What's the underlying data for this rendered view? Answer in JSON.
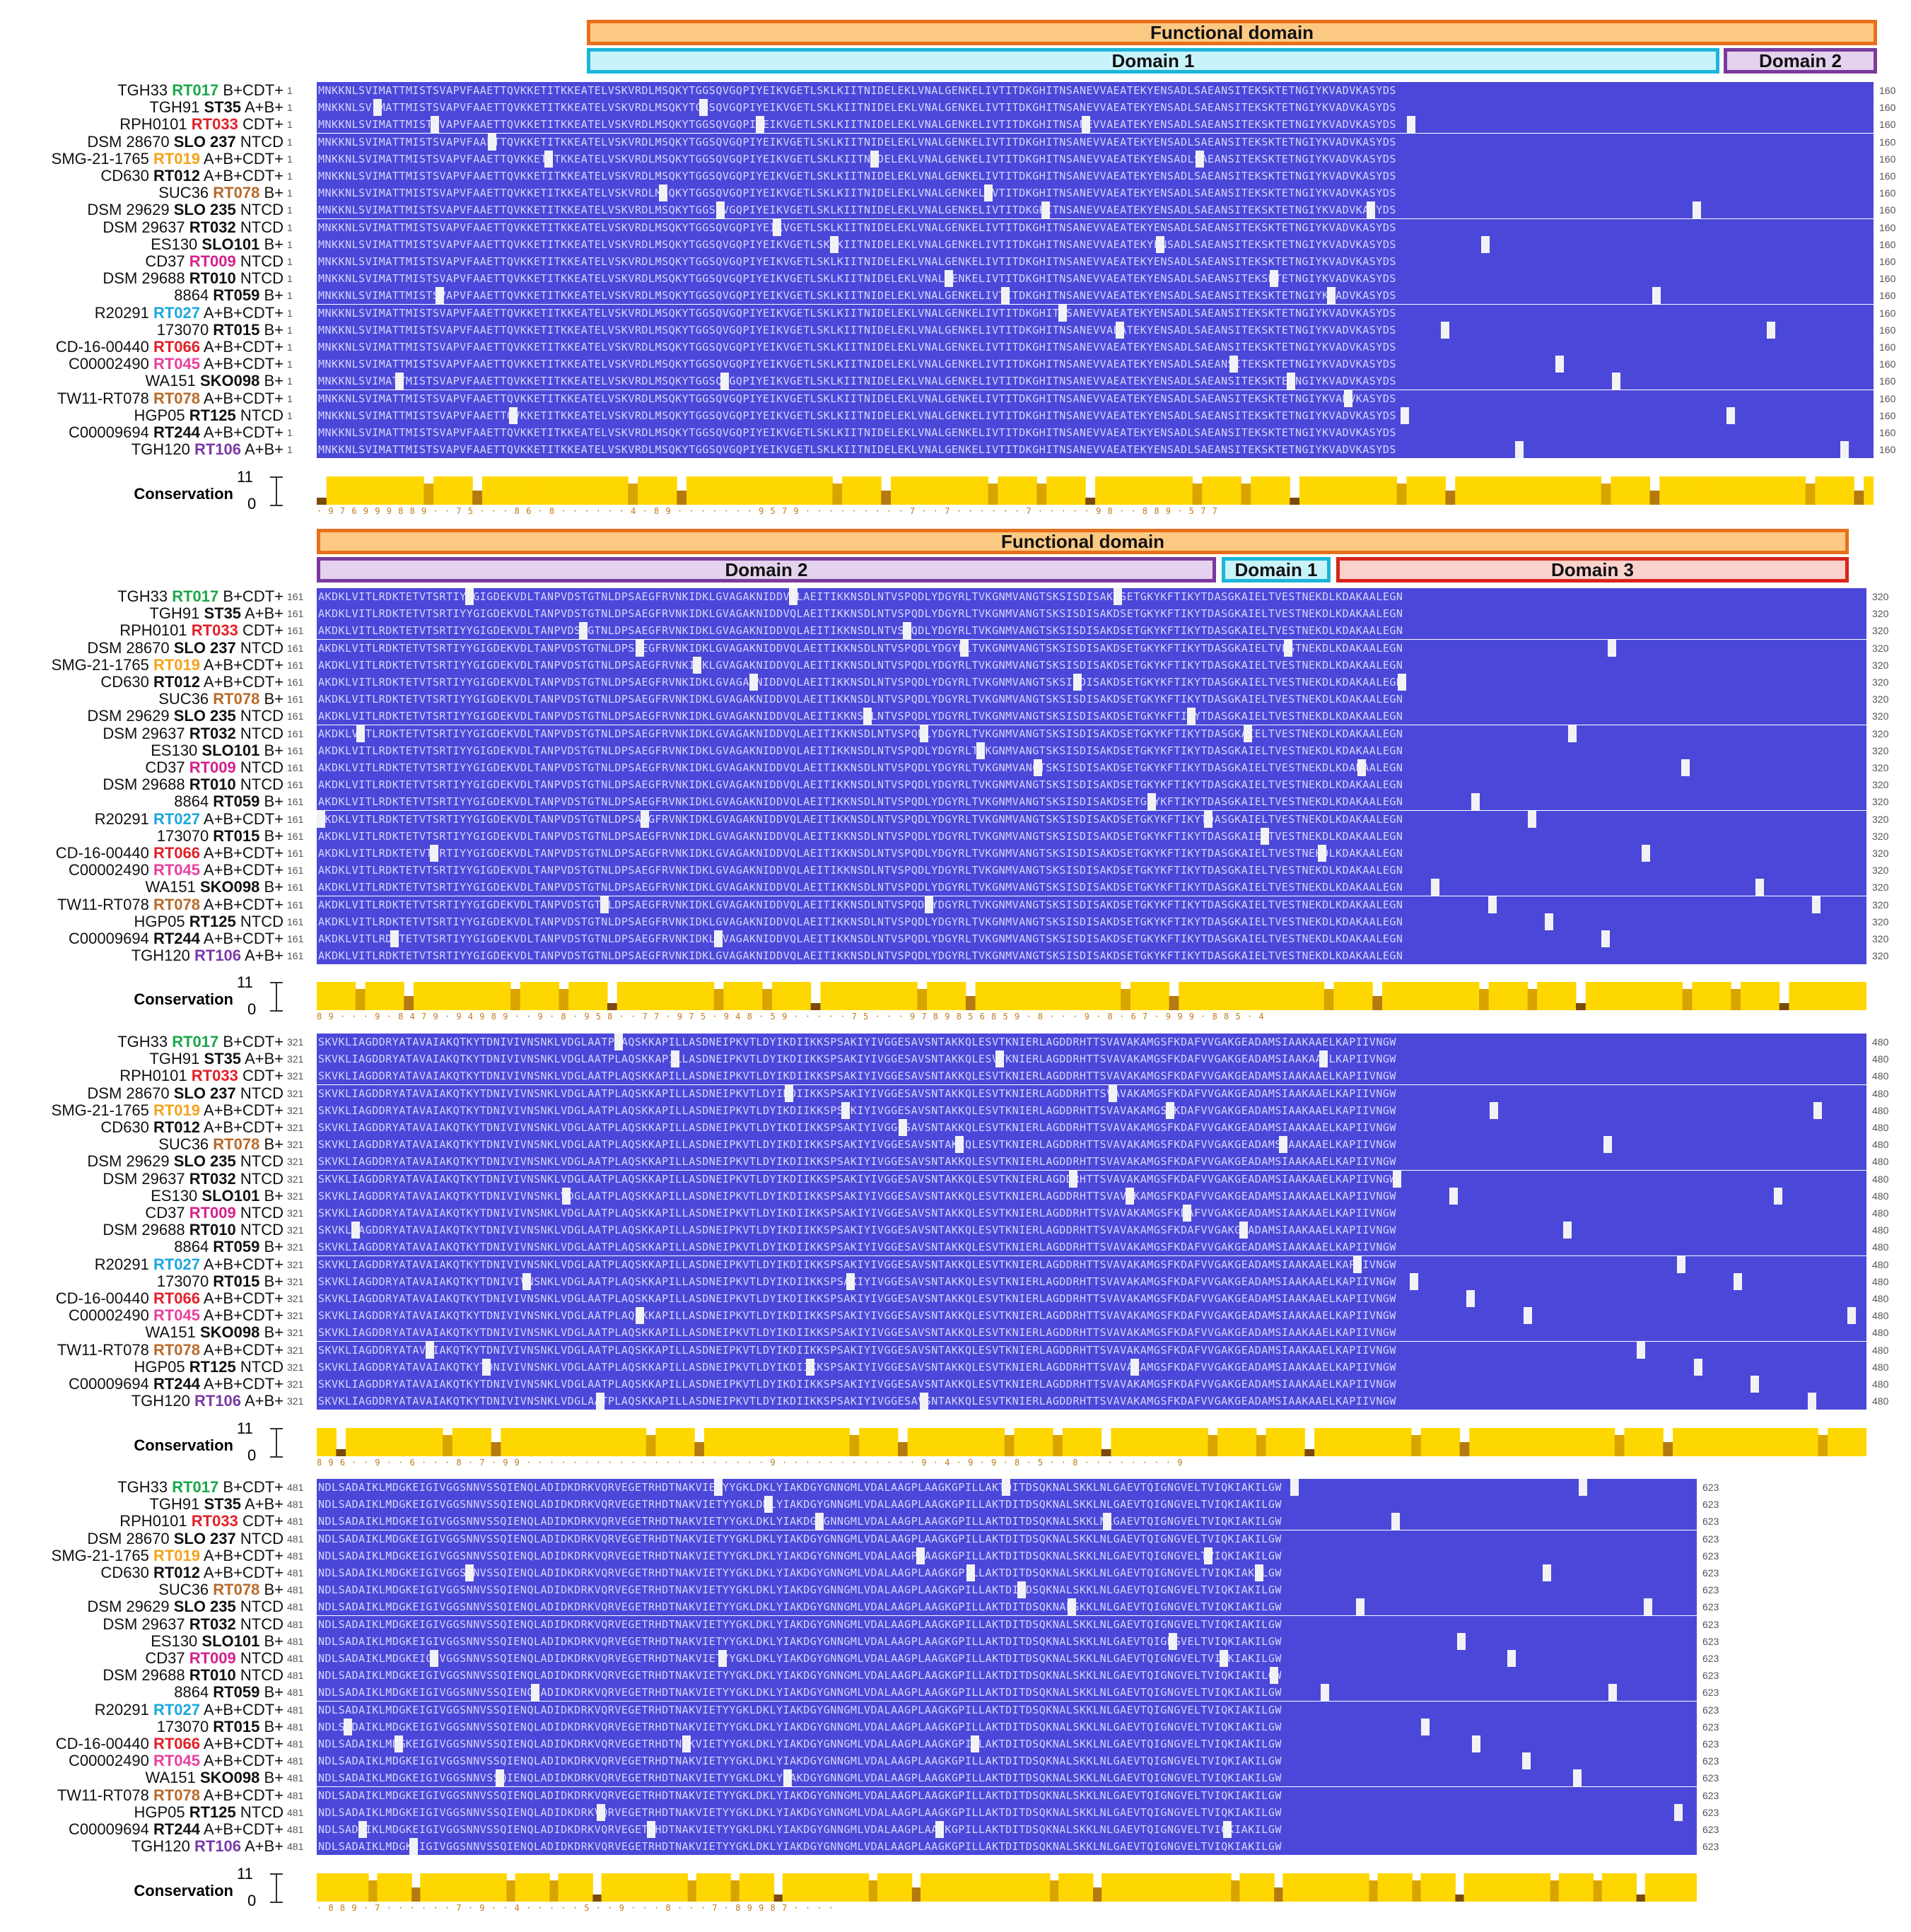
{
  "figure": {
    "functional_domain_label": "Functional domain",
    "conservation_label": "Conservation",
    "conservation_max": "11",
    "conservation_min": "0"
  },
  "strains": [
    {
      "id": "TGH33",
      "rt": "RT017",
      "rt_color": "#1aa84a",
      "tox": "B+CDT+"
    },
    {
      "id": "TGH91",
      "rt": "ST35",
      "rt_color": "#111111",
      "tox": "A+B+"
    },
    {
      "id": "RPH0101",
      "rt": "RT033",
      "rt_color": "#e21f26",
      "tox": "CDT+"
    },
    {
      "id": "DSM 28670",
      "rt": "SLO 237",
      "rt_color": "#111111",
      "tox": "NTCD"
    },
    {
      "id": "SMG-21-1765",
      "rt": "RT019",
      "rt_color": "#f5a21c",
      "tox": "A+B+CDT+"
    },
    {
      "id": "CD630",
      "rt": "RT012",
      "rt_color": "#111111",
      "tox": "A+B+CDT+"
    },
    {
      "id": "SUC36",
      "rt": "RT078",
      "rt_color": "#b86a2a",
      "tox": "B+"
    },
    {
      "id": "DSM 29629",
      "rt": "SLO 235",
      "rt_color": "#111111",
      "tox": "NTCD"
    },
    {
      "id": "DSM 29637",
      "rt": "RT032",
      "rt_color": "#111111",
      "tox": "NTCD"
    },
    {
      "id": "ES130",
      "rt": "SLO101",
      "rt_color": "#111111",
      "tox": "B+"
    },
    {
      "id": "CD37",
      "rt": "RT009",
      "rt_color": "#d61f8c",
      "tox": "NTCD"
    },
    {
      "id": "DSM 29688",
      "rt": "RT010",
      "rt_color": "#111111",
      "tox": "NTCD"
    },
    {
      "id": "8864",
      "rt": "RT059",
      "rt_color": "#111111",
      "tox": "B+"
    },
    {
      "id": "R20291",
      "rt": "RT027",
      "rt_color": "#1ba7e0",
      "tox": "A+B+CDT+"
    },
    {
      "id": "173070",
      "rt": "RT015",
      "rt_color": "#111111",
      "tox": "B+"
    },
    {
      "id": "CD-16-00440",
      "rt": "RT066",
      "rt_color": "#e21f26",
      "tox": "A+B+CDT+"
    },
    {
      "id": "C00002490",
      "rt": "RT045",
      "rt_color": "#e83fa0",
      "tox": "A+B+CDT+"
    },
    {
      "id": "WA151",
      "rt": "SKO098",
      "rt_color": "#111111",
      "tox": "B+"
    },
    {
      "id": "TW11-RT078",
      "rt": "RT078",
      "rt_color": "#b86a2a",
      "tox": "A+B+CDT+"
    },
    {
      "id": "HGP05",
      "rt": "RT125",
      "rt_color": "#111111",
      "tox": "NTCD"
    },
    {
      "id": "C00009694",
      "rt": "RT244",
      "rt_color": "#111111",
      "tox": "A+B+CDT+"
    },
    {
      "id": "TGH120",
      "rt": "RT106",
      "rt_color": "#7a3aa6",
      "tox": "A+B+"
    }
  ],
  "blocks": [
    {
      "start": "1",
      "end": "160",
      "seq": "MNKKNLSVIMATTMISTSVAPVFAAETTQVKKETITKKEATELVSKVRDLMSQKYTGGSQVGQPIYEIKVGETLSKLKIITNIDELEKLVNALGENKELIVTITDKGHITNSANEVVAEATEKYENSADLSAEANSITEKSKTETNGIYKVADVKASYDS",
      "domains": [
        {
          "label": "Functional domain",
          "type": "func"
        },
        {
          "label": "Domain 1",
          "type": "d1"
        },
        {
          "label": "Domain 2",
          "type": "d2"
        }
      ],
      "cons_digits": "· 9 7 6 9 9 9 8 8 9 · · 7 5 · · · 8 6 · 8 · · · · · · 4 · 8 9 · · · · · · · 9 5 7 9 · · · · · · · · · 7 · · 7 · · · · · · 7 · · · · · 9 8 · · 8 8 9 · 5 7 7"
    },
    {
      "start": "161",
      "end": "320",
      "seq": "AKDKLVITLRDKTETVTSRTIYYGIGDEKVDLTANPVDSTGTNLDPSAEGFRVNKIDKLGVAGAKNIDDVQLAEITIKKNSDLNTVSPQDLYDGYRLTVKGNMVANGTSKSISDISAKDSETGKYKFTIKYTDASGKAIELTVESTNEKDLKDAKAALEGN",
      "domains": [
        {
          "label": "Functional domain",
          "type": "func"
        },
        {
          "label": "Domain 2",
          "type": "d2"
        },
        {
          "label": "Domain 1",
          "type": "d1"
        },
        {
          "label": "Domain 3",
          "type": "d3"
        }
      ],
      "cons_digits": "8 9 · · · 9 · 8 4 7 9 · 9 4 9 8 9 · · 9 · 8 · 9 5 8 · · 7 7 · 9 7 5 · 9 4 8 · 5 9 · · · · · 7 5 · · · 9 7 8 9 8 5 6 8 5 9 · 8 · · · 9 · 8 · 6 7 · 9 9 9 · 8 8 5 · 4"
    },
    {
      "start": "321",
      "end": "480",
      "seq": "SKVKLIAGDDRYATAVAIAKQTKYTDNIVIVNSNKLVDGLAATPLAQSKKAPILLASDNEIPKVTLDYIKDIIKKSPSAKIYIVGGESAVSNTAKKQLESVTKNIERLAGDDRHTTSVAVAKAMGSFKDAFVVGAKGEADAMSIAAKAAELKAPIIVNGW",
      "domains": [],
      "cons_digits": "8 9 6 · · 9 · · 6 · · · 8 · 7 · 9 9 · · · · · · · · · · · · · · · · · · · · · 9 · · · · · · · · · · · · 9 · 4 · 9 · 9 · 8 · 5 · · 8 · · · · · · · · 9"
    },
    {
      "start": "481",
      "end": "623",
      "seq": "NDLSADAIKLMDGKEIGIVGGSNNVSSQIENQLADIDKDRKVQRVEGETRHDTNAKVIETYYGKLDKLYIAKDGYGNNGMLVDALAAGPLAAGKGPILLAKTDITDSQKNALSKKLNLGAEVTQIGNGVELTVIQKIAKILGW",
      "domains": [],
      "cons_digits": "· 8 8 9 · 7 · · · · · · 7 · 9 · · 4 · · · · · 5 · · 9 · · · 8 · · · 7 · 8 9 9 8 7 · · · ·"
    }
  ]
}
